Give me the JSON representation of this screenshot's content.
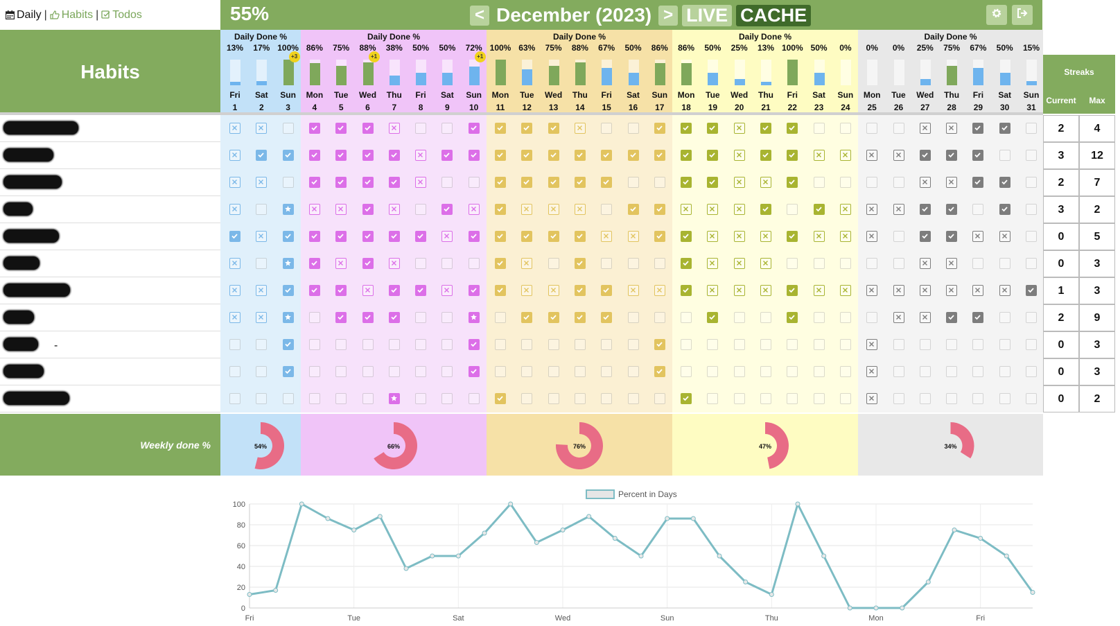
{
  "nav": {
    "daily": "Daily",
    "sep1": "|",
    "habits": "Habits",
    "sep2": "|",
    "todos": "Todos"
  },
  "header": {
    "percent": "55%",
    "prev": "<",
    "month": "December (2023)",
    "next": ">",
    "live": "LIVE",
    "cache": "CACHE",
    "settings_icon": "gear-icon",
    "logout_icon": "sign-out-icon"
  },
  "habits_title": "Habits",
  "streaks": {
    "title": "Streaks",
    "current": "Current",
    "max": "Max"
  },
  "colors": {
    "green": "#83ab5e",
    "week1": "#c2e1f8",
    "week2": "#f0c4f8",
    "week3": "#f6e1a7",
    "week4": "#fefcc2",
    "week5": "#e8e8e8",
    "blue_bar": "#6eb4ee",
    "green_bar": "#7fa85b",
    "pink": "#e86c86",
    "teal": "#7dbcc4"
  },
  "weeks": [
    {
      "title": "Daily Done %",
      "done_pct": "54%"
    },
    {
      "title": "Daily Done %",
      "done_pct": "66%"
    },
    {
      "title": "Daily Done %",
      "done_pct": "76%"
    },
    {
      "title": "Daily Done %",
      "done_pct": "47%"
    },
    {
      "title": "Daily Done %",
      "done_pct": "34%"
    }
  ],
  "days": [
    {
      "name": "Fri",
      "num": "1",
      "pct": "13%",
      "bonus": ""
    },
    {
      "name": "Sat",
      "num": "2",
      "pct": "17%",
      "bonus": ""
    },
    {
      "name": "Sun",
      "num": "3",
      "pct": "100%",
      "bonus": "+3"
    },
    {
      "name": "Mon",
      "num": "4",
      "pct": "86%",
      "bonus": ""
    },
    {
      "name": "Tue",
      "num": "5",
      "pct": "75%",
      "bonus": ""
    },
    {
      "name": "Wed",
      "num": "6",
      "pct": "88%",
      "bonus": "+1"
    },
    {
      "name": "Thu",
      "num": "7",
      "pct": "38%",
      "bonus": ""
    },
    {
      "name": "Fri",
      "num": "8",
      "pct": "50%",
      "bonus": ""
    },
    {
      "name": "Sat",
      "num": "9",
      "pct": "50%",
      "bonus": ""
    },
    {
      "name": "Sun",
      "num": "10",
      "pct": "72%",
      "bonus": "+1"
    },
    {
      "name": "Mon",
      "num": "11",
      "pct": "100%",
      "bonus": ""
    },
    {
      "name": "Tue",
      "num": "12",
      "pct": "63%",
      "bonus": ""
    },
    {
      "name": "Wed",
      "num": "13",
      "pct": "75%",
      "bonus": ""
    },
    {
      "name": "Thu",
      "num": "14",
      "pct": "88%",
      "bonus": ""
    },
    {
      "name": "Fri",
      "num": "15",
      "pct": "67%",
      "bonus": ""
    },
    {
      "name": "Sat",
      "num": "16",
      "pct": "50%",
      "bonus": ""
    },
    {
      "name": "Sun",
      "num": "17",
      "pct": "86%",
      "bonus": ""
    },
    {
      "name": "Mon",
      "num": "18",
      "pct": "86%",
      "bonus": ""
    },
    {
      "name": "Tue",
      "num": "19",
      "pct": "50%",
      "bonus": ""
    },
    {
      "name": "Wed",
      "num": "20",
      "pct": "25%",
      "bonus": ""
    },
    {
      "name": "Thu",
      "num": "21",
      "pct": "13%",
      "bonus": ""
    },
    {
      "name": "Fri",
      "num": "22",
      "pct": "100%",
      "bonus": ""
    },
    {
      "name": "Sat",
      "num": "23",
      "pct": "50%",
      "bonus": ""
    },
    {
      "name": "Sun",
      "num": "24",
      "pct": "0%",
      "bonus": ""
    },
    {
      "name": "Mon",
      "num": "25",
      "pct": "0%",
      "bonus": ""
    },
    {
      "name": "Tue",
      "num": "26",
      "pct": "0%",
      "bonus": ""
    },
    {
      "name": "Wed",
      "num": "27",
      "pct": "25%",
      "bonus": ""
    },
    {
      "name": "Thu",
      "num": "28",
      "pct": "75%",
      "bonus": ""
    },
    {
      "name": "Fri",
      "num": "29",
      "pct": "67%",
      "bonus": ""
    },
    {
      "name": "Sat",
      "num": "30",
      "pct": "50%",
      "bonus": ""
    },
    {
      "name": "Sun",
      "num": "31",
      "pct": "15%",
      "bonus": ""
    }
  ],
  "habits": [
    {
      "marks": "xx.vvvx..vvvvx..vvvxvv....xxvv..",
      "current": "2",
      "max": "4"
    },
    {
      "marks": "xvvvvvvxvvvvvvvvvvvxvvxxxxvvv..",
      "current": "3",
      "max": "12"
    },
    {
      "marks": "xx.vvvvx..vvvvv..vvxxv....xxvv..",
      "current": "2",
      "max": "7"
    },
    {
      "marks": "x.sxxvx.vxvxxx.vvxxxv.vxxxvv.v.",
      "current": "3",
      "max": "2"
    },
    {
      "marks": "vxvvvvvvxvvvvvxxvvxxxvxxx.vvxx.",
      "current": "0",
      "max": "5"
    },
    {
      "marks": "x.svxvx...vx.v...vxxx.....xx...",
      "current": "0",
      "max": "3"
    },
    {
      "marks": "xxvvvxvvxvvxxvvxxvxxxvxxxxxxxxv",
      "current": "1",
      "max": "3"
    },
    {
      "marks": "xxs.vvv..s.vvvv...v..v...xxvv..",
      "current": "2",
      "max": "9"
    },
    {
      "marks": "..v......v......v.......x.......",
      "current": "0",
      "max": "3"
    },
    {
      "marks": "..v......v......v.......x.......",
      "current": "0",
      "max": "3"
    },
    {
      "marks": "......s...v......v......x.......",
      "current": "0",
      "max": "2"
    }
  ],
  "weekly_label": "Weekly done %",
  "chart_data": {
    "type": "line",
    "legend": [
      "Percent in Days"
    ],
    "legend_position": "top",
    "x": [
      1,
      2,
      3,
      4,
      5,
      6,
      7,
      8,
      9,
      10,
      11,
      12,
      13,
      14,
      15,
      16,
      17,
      18,
      19,
      20,
      21,
      22,
      23,
      24,
      25,
      26,
      27,
      28,
      29,
      30,
      31
    ],
    "x_tick_labels": [
      "Fri",
      "Tue",
      "Sat",
      "Wed",
      "Sun",
      "Thu",
      "Mon",
      "Fri"
    ],
    "series": [
      {
        "name": "Percent in Days",
        "values": [
          13,
          17,
          100,
          86,
          75,
          88,
          38,
          50,
          50,
          72,
          100,
          63,
          75,
          88,
          67,
          50,
          86,
          86,
          50,
          25,
          13,
          100,
          50,
          0,
          0,
          0,
          25,
          75,
          67,
          50,
          15
        ]
      }
    ],
    "y_ticks": [
      0,
      20,
      40,
      60,
      80,
      100
    ],
    "ylim": [
      0,
      100
    ],
    "grid": true
  }
}
